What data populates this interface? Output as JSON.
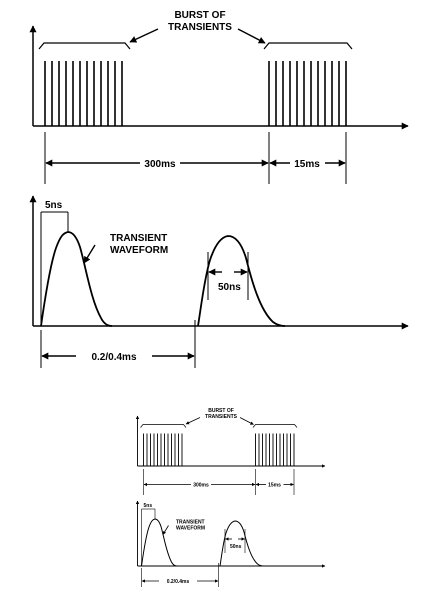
{
  "figure": {
    "burst_label_line1": "BURST OF",
    "burst_label_line2": "TRANSIENTS",
    "period_label": "300ms",
    "burst_duration_label": "15ms",
    "rise_time_label": "5ns",
    "waveform_label_line1": "TRANSIENT",
    "waveform_label_line2": "WAVEFORM",
    "pulse_width_label": "50ns",
    "spacing_label": "0.2/0.4ms"
  },
  "colors": {
    "ink": "#000000",
    "background": "#ffffff"
  }
}
